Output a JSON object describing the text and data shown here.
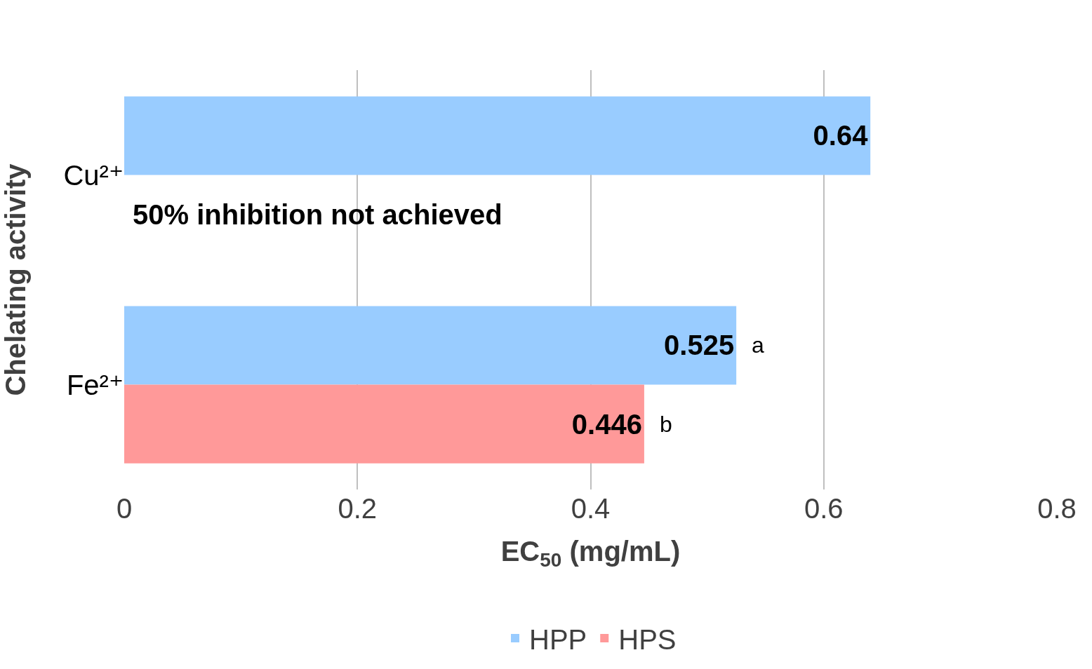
{
  "chart_data": {
    "type": "bar",
    "orientation": "horizontal",
    "xlabel": "EC$_{50}$ (mg/mL)",
    "ylabel": "Chelating activity",
    "categories": [
      "Cu²⁺",
      "Fe²⁺"
    ],
    "series": [
      {
        "name": "HPP",
        "color": "#99ccff",
        "values": [
          0.64,
          0.525
        ]
      },
      {
        "name": "HPS",
        "color": "#ff9999",
        "values": [
          null,
          0.446
        ]
      }
    ],
    "xlim": [
      0,
      0.8
    ],
    "xticks": [
      0,
      0.2,
      0.4,
      0.6,
      0.8
    ],
    "grid": "x",
    "legend": "bottom",
    "data_labels": true,
    "annotations": [
      {
        "text": "50% inhibition not achieved",
        "x": 0,
        "y": "Cu²⁺"
      },
      {
        "text": "a",
        "x": 0.525,
        "y": "Fe²⁺"
      },
      {
        "text": "b",
        "x": 0.446,
        "y": "Fe²⁺"
      }
    ]
  }
}
